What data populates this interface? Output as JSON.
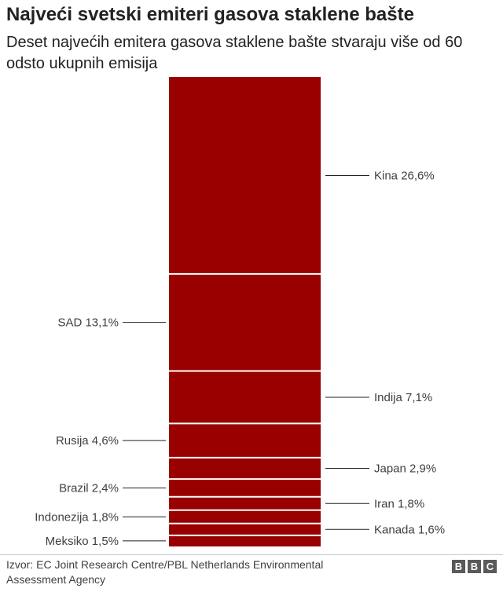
{
  "title": "Najveći svetski emiteri gasova staklene bašte",
  "subtitle": "Deset najvećih emitera gasova staklene bašte stvaraju više od 60 odsto ukupnih emisija",
  "source": "Izvor: EC Joint Research Centre/PBL Netherlands Environmental Assessment Agency",
  "logo": {
    "letters": [
      "B",
      "B",
      "C"
    ]
  },
  "colors": {
    "bar": "#990000",
    "divider": "#ffffff",
    "leader": "#222222"
  },
  "chart_data": {
    "type": "bar",
    "variant": "stacked-single-column",
    "title": "Najveći svetski emiteri gasova staklene bašte",
    "subtitle": "Deset najvećih emitera gasova staklene bašte stvaraju više od 60 odsto ukupnih emisija",
    "unit": "%",
    "segments": [
      {
        "name": "Kina",
        "value": 26.6,
        "label": "Kina 26,6%",
        "side": "right"
      },
      {
        "name": "SAD",
        "value": 13.1,
        "label": "SAD 13,1%",
        "side": "left"
      },
      {
        "name": "Indija",
        "value": 7.1,
        "label": "Indija 7,1%",
        "side": "right"
      },
      {
        "name": "Rusija",
        "value": 4.6,
        "label": "Rusija 4,6%",
        "side": "left"
      },
      {
        "name": "Japan",
        "value": 2.9,
        "label": "Japan 2,9%",
        "side": "right"
      },
      {
        "name": "Brazil",
        "value": 2.4,
        "label": "Brazil 2,4%",
        "side": "left"
      },
      {
        "name": "Iran",
        "value": 1.8,
        "label": "Iran 1,8%",
        "side": "right"
      },
      {
        "name": "Indonezija",
        "value": 1.8,
        "label": "Indonezija 1,8%",
        "side": "left"
      },
      {
        "name": "Kanada",
        "value": 1.6,
        "label": "Kanada 1,6%",
        "side": "right"
      },
      {
        "name": "Meksiko",
        "value": 1.5,
        "label": "Meksiko 1,5%",
        "side": "left"
      }
    ]
  }
}
